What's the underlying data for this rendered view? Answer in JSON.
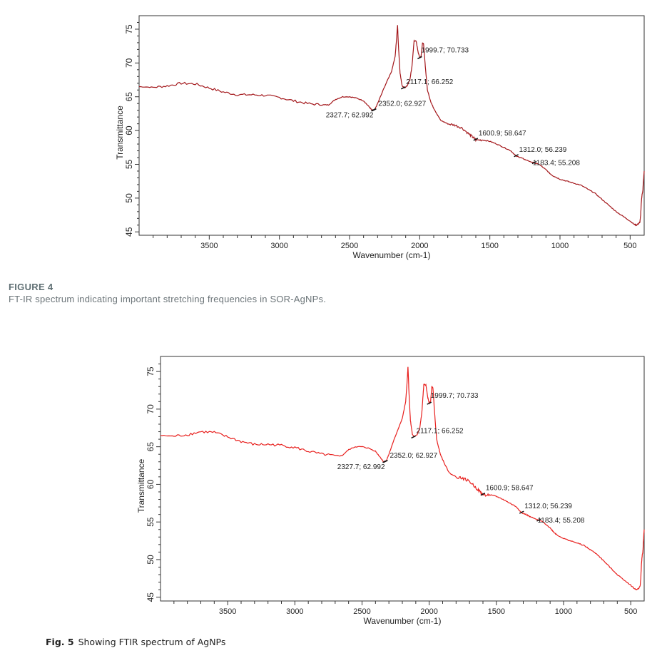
{
  "figure4": {
    "label": "FIGURE 4",
    "caption": "FT-IR spectrum indicating important stretching frequencies in SOR-AgNPs."
  },
  "figure5": {
    "label": "Fig. 5",
    "caption": "Showing FTIR spectrum of AgNPs"
  },
  "chart_data": [
    {
      "type": "line",
      "title": "",
      "xlabel": "Wavenumber (cm-1)",
      "ylabel": "Transmittance",
      "xlim": [
        4000,
        400
      ],
      "x_reversed": true,
      "ylim": [
        44.5,
        77
      ],
      "xticks": [
        3500,
        3000,
        2500,
        2000,
        1500,
        1000,
        500
      ],
      "yticks": [
        45,
        50,
        55,
        60,
        65,
        70,
        75
      ],
      "grid": false,
      "color": "#a3161a",
      "series": [
        {
          "x": [
            4000,
            3900,
            3800,
            3700,
            3600,
            3500,
            3400,
            3300,
            3200,
            3100,
            3000,
            2900,
            2800,
            2700,
            2650,
            2600,
            2550,
            2500,
            2450,
            2400,
            2360,
            2340,
            2320,
            2300,
            2250,
            2200,
            2175,
            2165,
            2158,
            2150,
            2140,
            2125,
            2110,
            2090,
            2070,
            2055,
            2040,
            2025,
            2010,
            2000,
            1990,
            1980,
            1972,
            1960,
            1945,
            1920,
            1900,
            1870,
            1850,
            1800,
            1750,
            1700,
            1650,
            1620,
            1600,
            1550,
            1500,
            1450,
            1400,
            1350,
            1312,
            1280,
            1250,
            1183,
            1150,
            1100,
            1070,
            1050,
            1000,
            950,
            900,
            850,
            800,
            750,
            700,
            650,
            600,
            550,
            500,
            470,
            455,
            440,
            430,
            425,
            420,
            415,
            410,
            405,
            400
          ],
          "y": [
            66.5,
            66.4,
            66.6,
            67.0,
            66.9,
            66.3,
            65.7,
            65.3,
            65.3,
            65.2,
            64.9,
            64.4,
            64.0,
            63.8,
            63.8,
            64.6,
            65.0,
            65.0,
            64.8,
            64.4,
            63.5,
            63.0,
            63.1,
            64.0,
            66.5,
            68.8,
            71.0,
            73.5,
            75.6,
            72.0,
            68.5,
            66.6,
            66.3,
            66.6,
            67.5,
            69.5,
            73.3,
            73.2,
            71.5,
            70.8,
            71.0,
            73.0,
            72.8,
            69.5,
            66.0,
            64.2,
            63.3,
            62.2,
            61.5,
            61.0,
            60.8,
            60.4,
            59.5,
            59.0,
            58.6,
            58.6,
            58.4,
            58.0,
            57.5,
            57.0,
            56.2,
            56.0,
            55.7,
            55.2,
            55.0,
            54.2,
            53.6,
            53.3,
            52.8,
            52.5,
            52.2,
            51.9,
            51.3,
            50.7,
            49.8,
            48.9,
            48.0,
            47.3,
            46.6,
            46.1,
            46.0,
            46.2,
            46.5,
            47.5,
            49.5,
            50.5,
            51.0,
            52.5,
            54.0
          ]
        }
      ],
      "annotations": [
        {
          "label": "2327.7; 62.992",
          "x": 2330,
          "y": 63.0
        },
        {
          "label": "2352.0; 62.927",
          "x": 2325,
          "y": 63.0
        },
        {
          "label": "2117.1; 66.252",
          "x": 2117.1,
          "y": 66.252
        },
        {
          "label": "1999.7; 70.733",
          "x": 1999.7,
          "y": 70.733
        },
        {
          "label": "1600.9; 58.647",
          "x": 1600.9,
          "y": 58.647
        },
        {
          "label": "1312.0; 56.239",
          "x": 1312.0,
          "y": 56.239
        },
        {
          "label": "1183.4; 55.208",
          "x": 1183.4,
          "y": 55.208
        }
      ]
    },
    {
      "type": "line",
      "title": "",
      "xlabel": "Wavenumber (cm-1)",
      "ylabel": "Transmittance",
      "xlim": [
        4000,
        400
      ],
      "x_reversed": true,
      "ylim": [
        44.5,
        77
      ],
      "xticks": [
        3500,
        3000,
        2500,
        2000,
        1500,
        1000,
        500
      ],
      "yticks": [
        45,
        50,
        55,
        60,
        65,
        70,
        75
      ],
      "grid": false,
      "color": "#e8201e",
      "series": [
        {
          "x": [
            4000,
            3900,
            3800,
            3700,
            3600,
            3500,
            3400,
            3300,
            3200,
            3100,
            3000,
            2900,
            2800,
            2700,
            2650,
            2600,
            2550,
            2500,
            2450,
            2400,
            2360,
            2340,
            2320,
            2300,
            2250,
            2200,
            2175,
            2165,
            2158,
            2150,
            2140,
            2125,
            2110,
            2090,
            2070,
            2055,
            2040,
            2025,
            2010,
            2000,
            1990,
            1980,
            1972,
            1960,
            1945,
            1920,
            1900,
            1870,
            1850,
            1800,
            1750,
            1700,
            1650,
            1620,
            1600,
            1550,
            1500,
            1450,
            1400,
            1350,
            1312,
            1280,
            1250,
            1183,
            1150,
            1100,
            1070,
            1050,
            1000,
            950,
            900,
            850,
            800,
            750,
            700,
            650,
            600,
            550,
            500,
            470,
            455,
            440,
            430,
            425,
            420,
            415,
            410,
            405,
            400
          ],
          "y": [
            66.5,
            66.4,
            66.6,
            67.0,
            66.9,
            66.3,
            65.7,
            65.3,
            65.3,
            65.2,
            64.9,
            64.4,
            64.0,
            63.8,
            63.8,
            64.6,
            65.0,
            65.0,
            64.8,
            64.4,
            63.5,
            63.0,
            63.1,
            64.0,
            66.5,
            68.8,
            71.0,
            73.5,
            75.6,
            72.0,
            68.5,
            66.6,
            66.3,
            66.6,
            67.5,
            69.5,
            73.3,
            73.2,
            71.5,
            70.8,
            71.0,
            73.0,
            72.8,
            69.5,
            66.0,
            64.2,
            63.3,
            62.2,
            61.5,
            61.0,
            60.8,
            60.4,
            59.5,
            59.0,
            58.6,
            58.6,
            58.4,
            58.0,
            57.5,
            57.0,
            56.2,
            56.0,
            55.7,
            55.2,
            55.0,
            54.2,
            53.6,
            53.3,
            52.8,
            52.5,
            52.2,
            51.9,
            51.3,
            50.7,
            49.8,
            48.9,
            48.0,
            47.3,
            46.6,
            46.1,
            46.0,
            46.2,
            46.5,
            47.5,
            49.5,
            50.5,
            51.0,
            52.5,
            54.0
          ]
        }
      ],
      "annotations": [
        {
          "label": "2327.7; 62.992",
          "x": 2330,
          "y": 63.0
        },
        {
          "label": "2352.0; 62.927",
          "x": 2325,
          "y": 63.0
        },
        {
          "label": "2117.1; 66.252",
          "x": 2117.1,
          "y": 66.252
        },
        {
          "label": "1999.7; 70.733",
          "x": 1999.7,
          "y": 70.733
        },
        {
          "label": "1600.9; 58.647",
          "x": 1600.9,
          "y": 58.647
        },
        {
          "label": "1312.0; 56.239",
          "x": 1312.0,
          "y": 56.239
        },
        {
          "label": "1183.4; 55.208",
          "x": 1183.4,
          "y": 55.208
        }
      ]
    }
  ]
}
